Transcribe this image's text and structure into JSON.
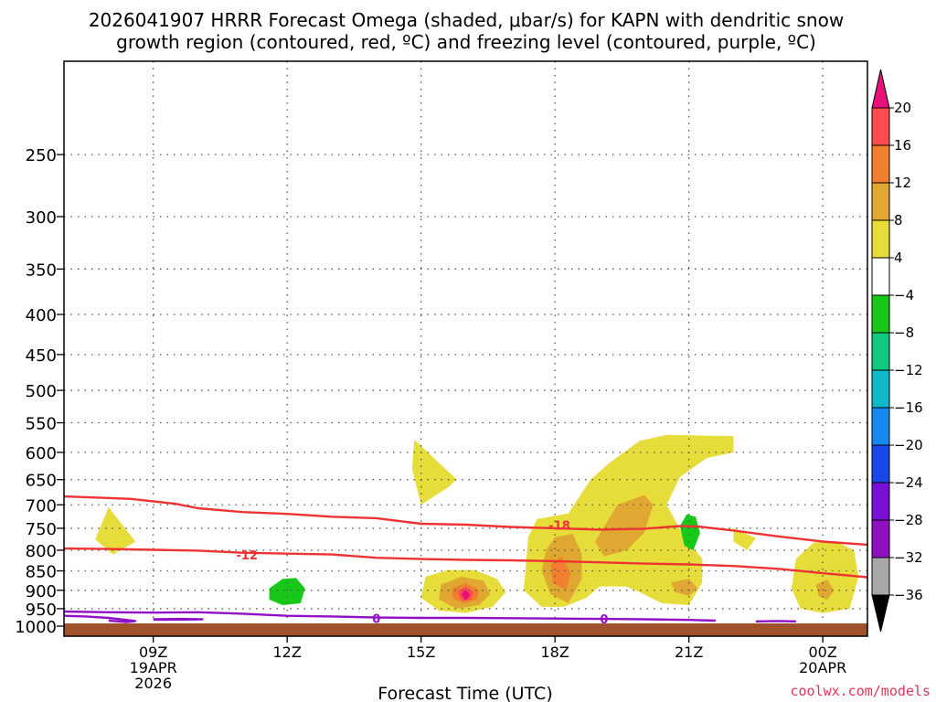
{
  "title_lines": [
    "2026041907 HRRR Forecast Omega (shaded, μbar/s) for KAPN with dendritic snow",
    "growth region (contoured, red, ºC) and freezing level (contoured, purple, ºC)"
  ],
  "xlabel": "Forecast Time (UTC)",
  "watermark": "coolwx.com/models",
  "chart_data": {
    "type": "heatmap",
    "title": "2026041907 HRRR Forecast Omega (shaded, μbar/s) for KAPN with dendritic snow growth region (contoured, red, ºC) and freezing level (contoured, purple, ºC)",
    "xlabel": "Forecast Time (UTC)",
    "ylabel": "",
    "x_range_hours": [
      7,
      25
    ],
    "y_range_hPa": [
      1030,
      190
    ],
    "y_scale": "log",
    "grid": true,
    "y_ticks": [
      250,
      300,
      350,
      400,
      450,
      500,
      550,
      600,
      650,
      700,
      750,
      800,
      850,
      900,
      950,
      1000
    ],
    "x_ticks": [
      {
        "hour": 9,
        "lines": [
          "09Z",
          "19APR",
          "2026"
        ]
      },
      {
        "hour": 12,
        "lines": [
          "12Z"
        ]
      },
      {
        "hour": 15,
        "lines": [
          "15Z"
        ]
      },
      {
        "hour": 18,
        "lines": [
          "18Z"
        ]
      },
      {
        "hour": 21,
        "lines": [
          "21Z"
        ]
      },
      {
        "hour": 24,
        "lines": [
          "00Z",
          "20APR"
        ]
      }
    ],
    "colorbar": {
      "labels": [
        "20",
        "16",
        "12",
        "8",
        "4",
        "−4",
        "−8",
        "−12",
        "−16",
        "−20",
        "−24",
        "−28",
        "−32",
        "−36"
      ],
      "colors": [
        "#ff4d4d",
        "#f08030",
        "#e0a830",
        "#e6dc3a",
        "#ffffff",
        "#18c818",
        "#10c880",
        "#10b8c8",
        "#1888f0",
        "#1848e8",
        "#7810d8",
        "#9010c0",
        "#a8a8a8"
      ],
      "top_arrow_color": "#e8107a",
      "bottom_arrow_color": "#000000"
    },
    "omega_regions": [
      {
        "level": "4 to 8",
        "color": "#e6dc3a",
        "points": [
          [
            8.0,
            705
          ],
          [
            8.6,
            780
          ],
          [
            8.1,
            810
          ],
          [
            7.7,
            775
          ]
        ]
      },
      {
        "level": "4 to 8",
        "color": "#e6dc3a",
        "points": [
          [
            14.85,
            578
          ],
          [
            15.8,
            650
          ],
          [
            15.6,
            665
          ],
          [
            15.0,
            700
          ],
          [
            14.8,
            630
          ]
        ]
      },
      {
        "level": "4 to 8",
        "color": "#e6dc3a",
        "points": [
          [
            15.1,
            865
          ],
          [
            15.6,
            848
          ],
          [
            16.2,
            848
          ],
          [
            16.7,
            870
          ],
          [
            16.9,
            905
          ],
          [
            16.6,
            945
          ],
          [
            16.0,
            962
          ],
          [
            15.4,
            955
          ],
          [
            15.0,
            920
          ]
        ]
      },
      {
        "level": "4 to 8",
        "color": "#e6dc3a",
        "points": [
          [
            17.4,
            770
          ],
          [
            17.6,
            730
          ],
          [
            18.3,
            718
          ],
          [
            18.8,
            650
          ],
          [
            19.2,
            620
          ],
          [
            19.9,
            580
          ],
          [
            20.5,
            570
          ],
          [
            22.0,
            572
          ],
          [
            22.0,
            600
          ],
          [
            21.4,
            610
          ],
          [
            20.8,
            645
          ],
          [
            20.5,
            700
          ],
          [
            20.9,
            770
          ],
          [
            21.3,
            820
          ],
          [
            21.3,
            880
          ],
          [
            21.0,
            940
          ],
          [
            20.4,
            935
          ],
          [
            19.9,
            905
          ],
          [
            19.6,
            890
          ],
          [
            19.0,
            890
          ],
          [
            18.7,
            920
          ],
          [
            18.2,
            945
          ],
          [
            17.7,
            945
          ],
          [
            17.3,
            900
          ]
        ]
      },
      {
        "level": "4 to 8",
        "color": "#e6dc3a",
        "points": [
          [
            22.0,
            750
          ],
          [
            22.5,
            772
          ],
          [
            22.3,
            800
          ],
          [
            22.0,
            780
          ]
        ]
      },
      {
        "level": "4 to 8",
        "color": "#e6dc3a",
        "points": [
          [
            23.4,
            820
          ],
          [
            23.8,
            782
          ],
          [
            24.3,
            780
          ],
          [
            24.7,
            800
          ],
          [
            24.8,
            865
          ],
          [
            24.6,
            950
          ],
          [
            24.0,
            962
          ],
          [
            23.5,
            950
          ],
          [
            23.3,
            895
          ]
        ]
      },
      {
        "level": "8 to 12",
        "color": "#e0a830",
        "points": [
          [
            15.45,
            885
          ],
          [
            15.9,
            865
          ],
          [
            16.4,
            875
          ],
          [
            16.55,
            910
          ],
          [
            16.3,
            940
          ],
          [
            15.8,
            950
          ],
          [
            15.4,
            925
          ]
        ]
      },
      {
        "level": "8 to 12",
        "color": "#e0a830",
        "points": [
          [
            17.8,
            800
          ],
          [
            18.0,
            770
          ],
          [
            18.4,
            762
          ],
          [
            18.6,
            810
          ],
          [
            18.6,
            870
          ],
          [
            18.3,
            935
          ],
          [
            17.9,
            910
          ],
          [
            17.7,
            850
          ]
        ]
      },
      {
        "level": "8 to 12",
        "color": "#e0a830",
        "points": [
          [
            18.9,
            780
          ],
          [
            19.4,
            700
          ],
          [
            20.0,
            680
          ],
          [
            20.2,
            700
          ],
          [
            20.0,
            760
          ],
          [
            19.6,
            800
          ],
          [
            19.1,
            815
          ]
        ]
      },
      {
        "level": "8 to 12",
        "color": "#e0a830",
        "points": [
          [
            20.6,
            880
          ],
          [
            21.0,
            870
          ],
          [
            21.2,
            895
          ],
          [
            21.0,
            915
          ],
          [
            20.7,
            905
          ]
        ]
      },
      {
        "level": "8 to 12",
        "color": "#e0a830",
        "points": [
          [
            23.85,
            885
          ],
          [
            24.1,
            872
          ],
          [
            24.25,
            900
          ],
          [
            24.1,
            925
          ],
          [
            23.9,
            915
          ]
        ]
      },
      {
        "level": "12 to 16",
        "color": "#f08030",
        "points": [
          [
            15.7,
            895
          ],
          [
            16.0,
            880
          ],
          [
            16.3,
            900
          ],
          [
            16.25,
            925
          ],
          [
            15.95,
            935
          ],
          [
            15.7,
            920
          ]
        ]
      },
      {
        "level": "12 to 16",
        "color": "#f08030",
        "points": [
          [
            17.9,
            835
          ],
          [
            18.15,
            815
          ],
          [
            18.35,
            855
          ],
          [
            18.25,
            900
          ],
          [
            17.95,
            880
          ]
        ]
      },
      {
        "level": "16 to 20",
        "color": "#ff4d4d",
        "points": [
          [
            15.82,
            903
          ],
          [
            16.0,
            890
          ],
          [
            16.18,
            905
          ],
          [
            16.12,
            925
          ],
          [
            15.9,
            928
          ]
        ]
      },
      {
        "level": ">20",
        "color": "#e8107a",
        "points": [
          [
            15.9,
            910
          ],
          [
            16.0,
            898
          ],
          [
            16.1,
            912
          ],
          [
            16.0,
            928
          ]
        ]
      },
      {
        "level": "-8 to -4",
        "color": "#18c818",
        "points": [
          [
            11.6,
            895
          ],
          [
            11.9,
            870
          ],
          [
            12.2,
            868
          ],
          [
            12.4,
            895
          ],
          [
            12.3,
            935
          ],
          [
            11.9,
            940
          ],
          [
            11.6,
            925
          ]
        ]
      },
      {
        "level": "-8 to -4",
        "color": "#18c818",
        "points": [
          [
            20.8,
            745
          ],
          [
            20.95,
            720
          ],
          [
            21.15,
            725
          ],
          [
            21.25,
            760
          ],
          [
            21.1,
            800
          ],
          [
            20.9,
            790
          ]
        ]
      }
    ],
    "contours": [
      {
        "name": "-18",
        "color": "#ee3333",
        "label": "-18",
        "label_at": [
          18.1,
          743
        ],
        "points": [
          [
            7,
            683
          ],
          [
            8.5,
            688
          ],
          [
            9.5,
            698
          ],
          [
            10,
            707
          ],
          [
            11,
            715
          ],
          [
            12,
            719
          ],
          [
            13,
            725
          ],
          [
            14,
            728
          ],
          [
            15,
            740
          ],
          [
            16,
            742
          ],
          [
            17,
            747
          ],
          [
            18,
            750
          ],
          [
            19,
            753
          ],
          [
            20,
            751
          ],
          [
            20.8,
            745
          ],
          [
            21.2,
            746
          ],
          [
            22,
            755
          ],
          [
            23,
            768
          ],
          [
            24,
            780
          ],
          [
            25,
            787
          ]
        ]
      },
      {
        "name": "-12",
        "color": "#ee3333",
        "label": "-12",
        "label_at": [
          11.1,
          811
        ],
        "points": [
          [
            7,
            796
          ],
          [
            8,
            797
          ],
          [
            9,
            799
          ],
          [
            10,
            801
          ],
          [
            11,
            806
          ],
          [
            12,
            808
          ],
          [
            13,
            810
          ],
          [
            14,
            818
          ],
          [
            15,
            821
          ],
          [
            16,
            823
          ],
          [
            17,
            824
          ],
          [
            18,
            826
          ],
          [
            19,
            829
          ],
          [
            20,
            832
          ],
          [
            21,
            834
          ],
          [
            22,
            838
          ],
          [
            23,
            845
          ],
          [
            24,
            856
          ],
          [
            25,
            866
          ]
        ]
      },
      {
        "name": "0",
        "color": "#9010c8",
        "label": "0",
        "label_at": [
          14.0,
          978
        ],
        "points": [
          [
            7,
            958
          ],
          [
            8,
            960
          ],
          [
            9,
            961
          ],
          [
            10,
            960
          ],
          [
            11,
            964
          ],
          [
            12,
            970
          ],
          [
            13,
            972
          ],
          [
            14,
            975
          ],
          [
            15,
            976
          ],
          [
            16,
            976
          ],
          [
            17,
            977
          ],
          [
            18,
            978
          ],
          [
            19,
            979
          ],
          [
            20,
            980
          ],
          [
            21,
            982
          ],
          [
            21.6,
            984
          ]
        ]
      },
      {
        "name": "0 (fragment A)",
        "color": "#9010c8",
        "points": [
          [
            7,
            970
          ],
          [
            7.5,
            972
          ],
          [
            8.0,
            976
          ],
          [
            8.4,
            982
          ],
          [
            8.6,
            985
          ],
          [
            8.4,
            988
          ],
          [
            8.0,
            984
          ]
        ]
      },
      {
        "name": "0 (fragment B)",
        "color": "#9010c8",
        "points": [
          [
            9.0,
            980
          ],
          [
            9.6,
            979
          ],
          [
            10.1,
            980
          ],
          [
            9.6,
            981
          ],
          [
            9.0,
            981
          ]
        ]
      },
      {
        "name": "0 (fragment C)",
        "color": "#9010c8",
        "points": [
          [
            22.5,
            986
          ],
          [
            23.0,
            985
          ],
          [
            23.4,
            986
          ]
        ]
      },
      {
        "name": "0 (label 2 anchor)",
        "color": "#9010c8",
        "label": "0",
        "label_at": [
          19.1,
          979
        ],
        "points": []
      }
    ],
    "ground": {
      "color": "#a0522d",
      "below_hPa": 992
    }
  }
}
